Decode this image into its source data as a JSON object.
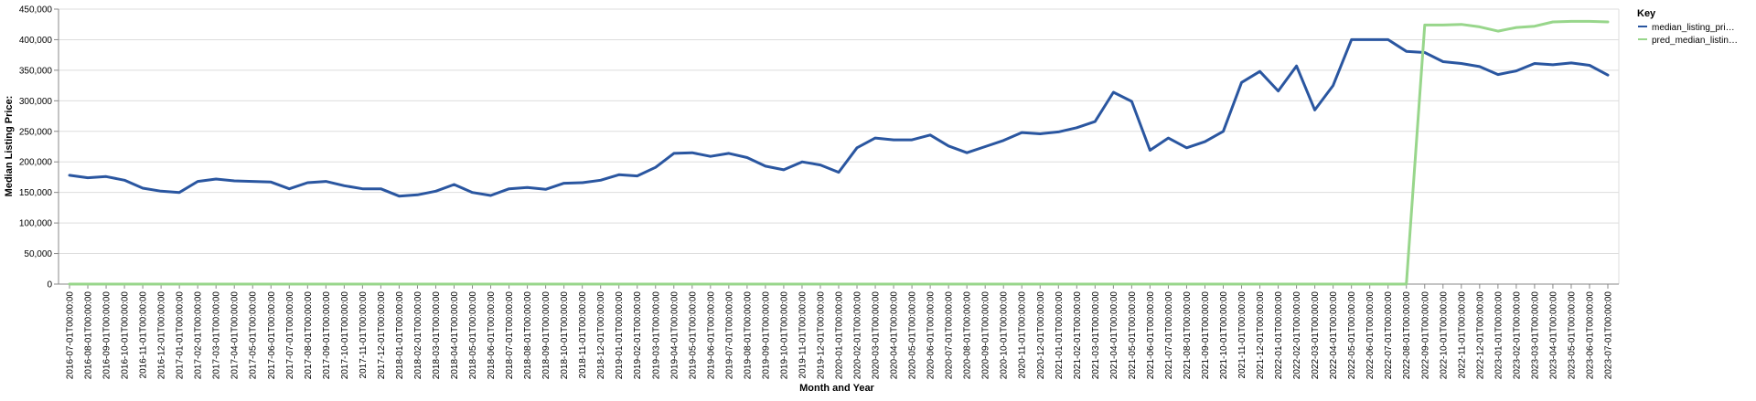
{
  "chart_data": {
    "type": "line",
    "title": "",
    "xlabel": "Month and Year",
    "ylabel": "Median Listing Price:",
    "ylim": [
      0,
      450000
    ],
    "y_ticks": [
      0,
      50000,
      100000,
      150000,
      200000,
      250000,
      300000,
      350000,
      400000,
      450000
    ],
    "y_tick_labels": [
      "0",
      "50,000",
      "100,000",
      "150,000",
      "200,000",
      "250,000",
      "300,000",
      "350,000",
      "400,000",
      "450,000"
    ],
    "grid": true,
    "legend": {
      "title": "Key",
      "position": "top-right",
      "entries": [
        "median_listing_pri…",
        "pred_median_listin…"
      ]
    },
    "x": [
      "2016-07-01T00:00:00",
      "2016-08-01T00:00:00",
      "2016-09-01T00:00:00",
      "2016-10-01T00:00:00",
      "2016-11-01T00:00:00",
      "2016-12-01T00:00:00",
      "2017-01-01T00:00:00",
      "2017-02-01T00:00:00",
      "2017-03-01T00:00:00",
      "2017-04-01T00:00:00",
      "2017-05-01T00:00:00",
      "2017-06-01T00:00:00",
      "2017-07-01T00:00:00",
      "2017-08-01T00:00:00",
      "2017-09-01T00:00:00",
      "2017-10-01T00:00:00",
      "2017-11-01T00:00:00",
      "2017-12-01T00:00:00",
      "2018-01-01T00:00:00",
      "2018-02-01T00:00:00",
      "2018-03-01T00:00:00",
      "2018-04-01T00:00:00",
      "2018-05-01T00:00:00",
      "2018-06-01T00:00:00",
      "2018-07-01T00:00:00",
      "2018-08-01T00:00:00",
      "2018-09-01T00:00:00",
      "2018-10-01T00:00:00",
      "2018-11-01T00:00:00",
      "2018-12-01T00:00:00",
      "2019-01-01T00:00:00",
      "2019-02-01T00:00:00",
      "2019-03-01T00:00:00",
      "2019-04-01T00:00:00",
      "2019-05-01T00:00:00",
      "2019-06-01T00:00:00",
      "2019-07-01T00:00:00",
      "2019-08-01T00:00:00",
      "2019-09-01T00:00:00",
      "2019-10-01T00:00:00",
      "2019-11-01T00:00:00",
      "2019-12-01T00:00:00",
      "2020-01-01T00:00:00",
      "2020-02-01T00:00:00",
      "2020-03-01T00:00:00",
      "2020-04-01T00:00:00",
      "2020-05-01T00:00:00",
      "2020-06-01T00:00:00",
      "2020-07-01T00:00:00",
      "2020-08-01T00:00:00",
      "2020-09-01T00:00:00",
      "2020-10-01T00:00:00",
      "2020-11-01T00:00:00",
      "2020-12-01T00:00:00",
      "2021-01-01T00:00:00",
      "2021-02-01T00:00:00",
      "2021-03-01T00:00:00",
      "2021-04-01T00:00:00",
      "2021-05-01T00:00:00",
      "2021-06-01T00:00:00",
      "2021-07-01T00:00:00",
      "2021-08-01T00:00:00",
      "2021-09-01T00:00:00",
      "2021-10-01T00:00:00",
      "2021-11-01T00:00:00",
      "2021-12-01T00:00:00",
      "2022-01-01T00:00:00",
      "2022-02-01T00:00:00",
      "2022-03-01T00:00:00",
      "2022-04-01T00:00:00",
      "2022-05-01T00:00:00",
      "2022-06-01T00:00:00",
      "2022-07-01T00:00:00",
      "2022-08-01T00:00:00",
      "2022-09-01T00:00:00",
      "2022-10-01T00:00:00",
      "2022-11-01T00:00:00",
      "2022-12-01T00:00:00",
      "2023-01-01T00:00:00",
      "2023-02-01T00:00:00",
      "2023-03-01T00:00:00",
      "2023-04-01T00:00:00",
      "2023-05-01T00:00:00",
      "2023-06-01T00:00:00",
      "2023-07-01T00:00:00"
    ],
    "series": [
      {
        "name": "median_listing_pri…",
        "color": "#2a56a0",
        "values": [
          178000,
          174000,
          176000,
          170000,
          157000,
          152000,
          150000,
          168000,
          172000,
          169000,
          168000,
          167000,
          156000,
          166000,
          168000,
          161000,
          156000,
          156000,
          144000,
          146000,
          152000,
          163000,
          150000,
          145000,
          156000,
          158000,
          155000,
          165000,
          166000,
          170000,
          179000,
          177000,
          191000,
          214000,
          215000,
          209000,
          214000,
          207000,
          193000,
          187000,
          200000,
          195000,
          183000,
          223000,
          239000,
          236000,
          236000,
          244000,
          226000,
          215000,
          225000,
          235000,
          248000,
          246000,
          249000,
          256000,
          266000,
          314000,
          299000,
          219000,
          239000,
          223000,
          233000,
          250000,
          330000,
          348000,
          316000,
          357000,
          285000,
          325000,
          400000,
          400000,
          400000,
          381000,
          379000,
          364000,
          361000,
          356000,
          343000,
          349000,
          361000,
          359000,
          362000,
          358000,
          342000
        ]
      },
      {
        "name": "pred_median_listin…",
        "color": "#98d68b",
        "values": [
          0,
          0,
          0,
          0,
          0,
          0,
          0,
          0,
          0,
          0,
          0,
          0,
          0,
          0,
          0,
          0,
          0,
          0,
          0,
          0,
          0,
          0,
          0,
          0,
          0,
          0,
          0,
          0,
          0,
          0,
          0,
          0,
          0,
          0,
          0,
          0,
          0,
          0,
          0,
          0,
          0,
          0,
          0,
          0,
          0,
          0,
          0,
          0,
          0,
          0,
          0,
          0,
          0,
          0,
          0,
          0,
          0,
          0,
          0,
          0,
          0,
          0,
          0,
          0,
          0,
          0,
          0,
          0,
          0,
          0,
          0,
          0,
          0,
          0,
          424000,
          424000,
          425000,
          421000,
          414000,
          420000,
          422000,
          429000,
          430000,
          430000,
          429000
        ]
      }
    ]
  }
}
